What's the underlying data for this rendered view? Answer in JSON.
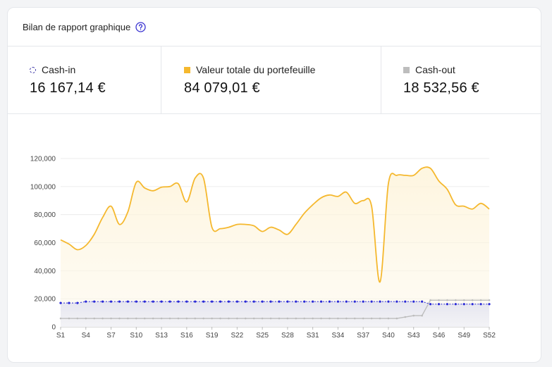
{
  "header": {
    "title": "Bilan de rapport graphique",
    "help_icon": "question-circle-icon"
  },
  "stats": [
    {
      "label": "Cash-in",
      "value": "16 167,14 €",
      "marker": "dashed-circle",
      "color": "#3730a3"
    },
    {
      "label": "Valeur totale du portefeuille",
      "value": "84 079,01 €",
      "marker": "square",
      "color": "#f5b82e"
    },
    {
      "label": "Cash-out",
      "value": "18 532,56 €",
      "marker": "square",
      "color": "#bdbdbd"
    }
  ],
  "chart_data": {
    "type": "area",
    "x": [
      "S1",
      "S2",
      "S3",
      "S4",
      "S5",
      "S6",
      "S7",
      "S8",
      "S9",
      "S10",
      "S11",
      "S12",
      "S13",
      "S14",
      "S15",
      "S16",
      "S17",
      "S18",
      "S19",
      "S20",
      "S21",
      "S22",
      "S23",
      "S24",
      "S25",
      "S26",
      "S27",
      "S28",
      "S29",
      "S30",
      "S31",
      "S32",
      "S33",
      "S34",
      "S35",
      "S36",
      "S37",
      "S38",
      "S39",
      "S40",
      "S41",
      "S42",
      "S43",
      "S44",
      "S45",
      "S46",
      "S47",
      "S48",
      "S49",
      "S50",
      "S51",
      "S52"
    ],
    "tick_labels": [
      "S1",
      "S4",
      "S7",
      "S10",
      "S13",
      "S16",
      "S19",
      "S22",
      "S25",
      "S28",
      "S31",
      "S34",
      "S37",
      "S40",
      "S43",
      "S46",
      "S49",
      "S52"
    ],
    "ylim": [
      0,
      120000
    ],
    "yticks": [
      "0",
      "20,000",
      "40,000",
      "60,000",
      "80,000",
      "100,000",
      "120,000"
    ],
    "grid": true,
    "series": [
      {
        "name": "Valeur totale du portefeuille",
        "color": "#f5b82e",
        "values": [
          62000,
          59000,
          55000,
          58000,
          66000,
          78000,
          86000,
          73000,
          82000,
          103000,
          99000,
          97000,
          99500,
          100000,
          102000,
          89000,
          106000,
          106000,
          71000,
          70000,
          71000,
          73000,
          73000,
          72000,
          68000,
          71000,
          69000,
          66000,
          73000,
          81000,
          87000,
          92000,
          94000,
          93000,
          96000,
          88000,
          90000,
          86000,
          32000,
          102000,
          108000,
          108000,
          108000,
          113000,
          113000,
          104000,
          98000,
          87000,
          86000,
          84000,
          88000,
          84000
        ]
      },
      {
        "name": "Cash-in",
        "color": "#2929d6",
        "values": [
          17000,
          17000,
          17000,
          18000,
          18000,
          18000,
          18000,
          18000,
          18000,
          18000,
          18000,
          18000,
          18000,
          18000,
          18000,
          18000,
          18000,
          18000,
          18000,
          18000,
          18000,
          18000,
          18000,
          18000,
          18000,
          18000,
          18000,
          18000,
          18000,
          18000,
          18000,
          18000,
          18000,
          18000,
          18000,
          18000,
          18000,
          18000,
          18000,
          18000,
          18000,
          18000,
          18000,
          18000,
          16200,
          16200,
          16200,
          16200,
          16200,
          16200,
          16200,
          16200
        ]
      },
      {
        "name": "Cash-out",
        "color": "#bdbdbd",
        "values": [
          6000,
          6000,
          6000,
          6000,
          6000,
          6000,
          6000,
          6000,
          6000,
          6000,
          6000,
          6000,
          6000,
          6000,
          6000,
          6000,
          6000,
          6000,
          6000,
          6000,
          6000,
          6000,
          6000,
          6000,
          6000,
          6000,
          6000,
          6000,
          6000,
          6000,
          6000,
          6000,
          6000,
          6000,
          6000,
          6000,
          6000,
          6000,
          6000,
          6000,
          6000,
          7000,
          8000,
          8000,
          19000,
          19000,
          19000,
          19000,
          19000,
          19000,
          19000,
          19000
        ]
      }
    ]
  }
}
